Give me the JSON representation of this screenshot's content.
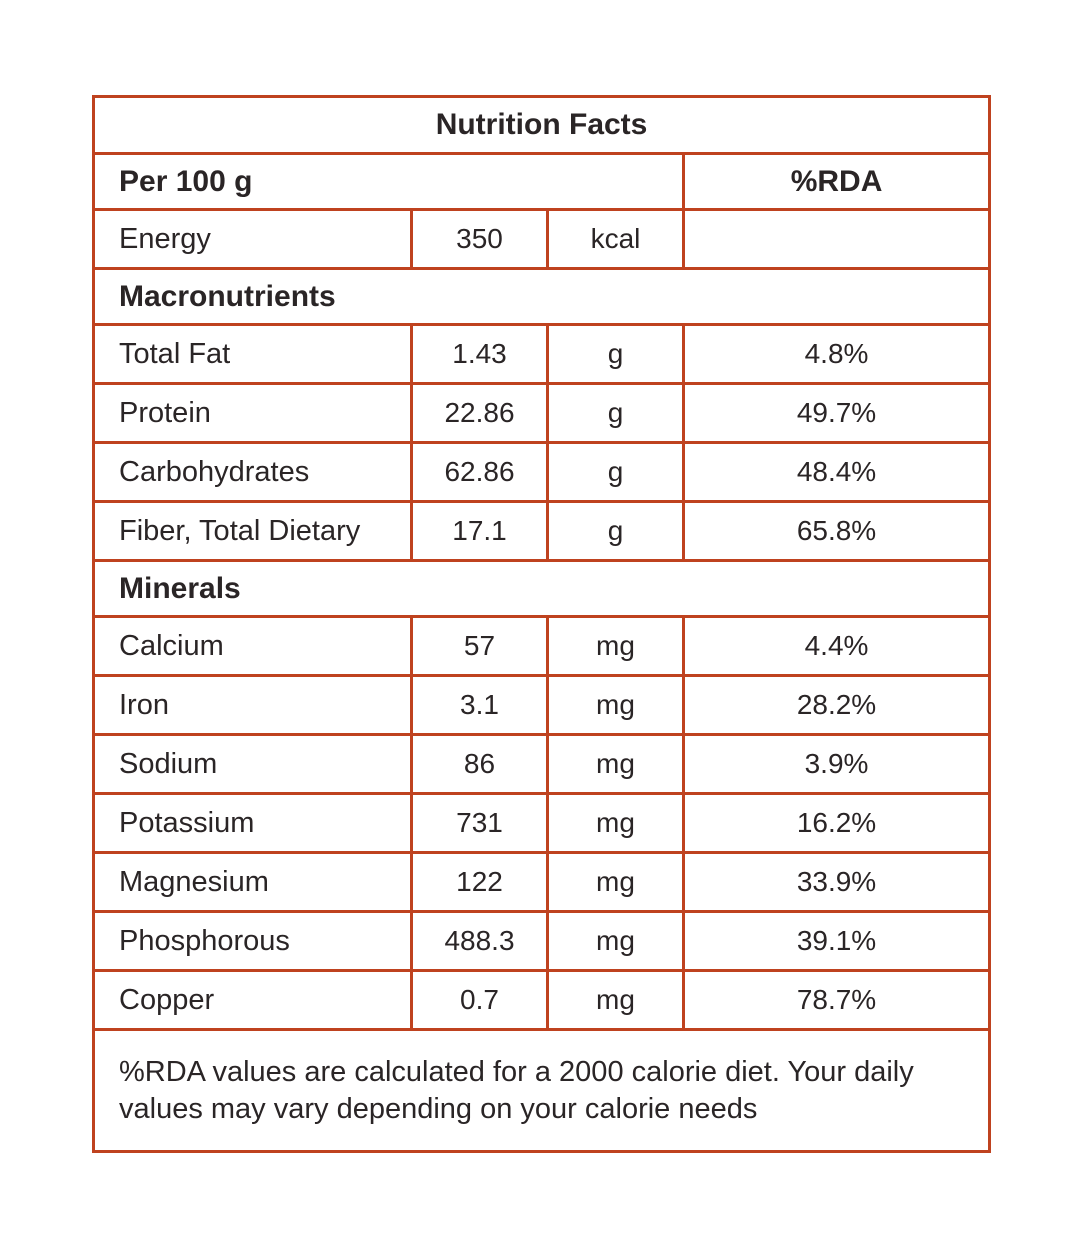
{
  "table": {
    "title": "Nutrition Facts",
    "columns": {
      "serving": "Per 100 g",
      "rda": "%RDA"
    },
    "energy": {
      "label": "Energy",
      "value": "350",
      "unit": "kcal",
      "rda": ""
    },
    "macronutrients": {
      "heading": "Macronutrients",
      "rows": [
        {
          "label": "Total Fat",
          "value": "1.43",
          "unit": "g",
          "rda": "4.8%"
        },
        {
          "label": "Protein",
          "value": "22.86",
          "unit": "g",
          "rda": "49.7%"
        },
        {
          "label": "Carbohydrates",
          "value": "62.86",
          "unit": "g",
          "rda": "48.4%"
        },
        {
          "label": "Fiber, Total Dietary",
          "value": "17.1",
          "unit": "g",
          "rda": "65.8%"
        }
      ]
    },
    "minerals": {
      "heading": "Minerals",
      "rows": [
        {
          "label": "Calcium",
          "value": "57",
          "unit": "mg",
          "rda": "4.4%"
        },
        {
          "label": "Iron",
          "value": "3.1",
          "unit": "mg",
          "rda": "28.2%"
        },
        {
          "label": "Sodium",
          "value": "86",
          "unit": "mg",
          "rda": "3.9%"
        },
        {
          "label": "Potassium",
          "value": "731",
          "unit": "mg",
          "rda": "16.2%"
        },
        {
          "label": "Magnesium",
          "value": "122",
          "unit": "mg",
          "rda": "33.9%"
        },
        {
          "label": "Phosphorous",
          "value": "488.3",
          "unit": "mg",
          "rda": "39.1%"
        },
        {
          "label": "Copper",
          "value": "0.7",
          "unit": "mg",
          "rda": "78.7%"
        }
      ]
    },
    "footnote": "%RDA values are calculated for a 2000 calorie diet. Your daily values may vary depending on your calorie needs"
  },
  "colors": {
    "border": "#bf421f",
    "text": "#2a2526",
    "background": "#ffffff"
  }
}
